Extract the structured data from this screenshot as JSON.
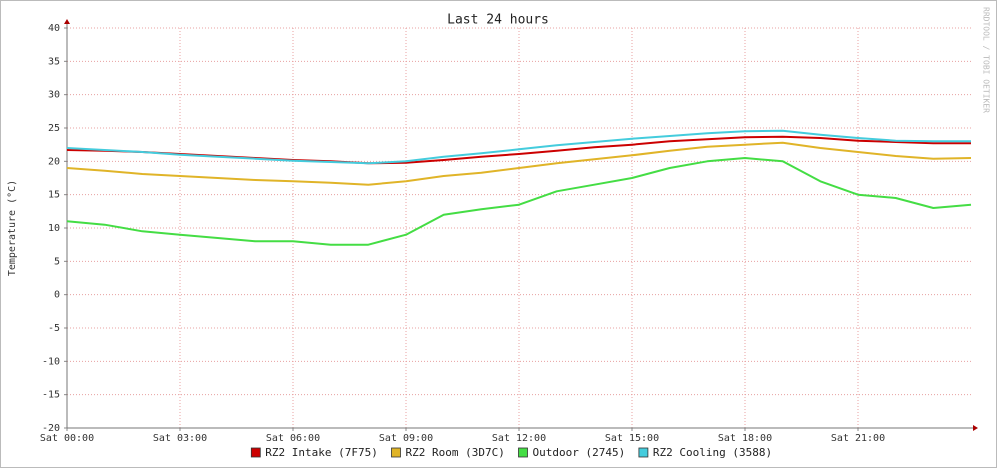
{
  "chart_data": {
    "type": "line",
    "title": "Last 24 hours",
    "y_label": "Temperature (°C)",
    "side_label": "RRDTOOL / TOBI OETIKER",
    "x": [
      0,
      1,
      2,
      3,
      4,
      5,
      6,
      7,
      8,
      9,
      10,
      11,
      12,
      13,
      14,
      15,
      16,
      17,
      18,
      19,
      20,
      21,
      22,
      23,
      24
    ],
    "xlim": [
      0,
      24
    ],
    "xticks": [
      {
        "value": 0,
        "label": "Sat 00:00"
      },
      {
        "value": 3,
        "label": "Sat 03:00"
      },
      {
        "value": 6,
        "label": "Sat 06:00"
      },
      {
        "value": 9,
        "label": "Sat 09:00"
      },
      {
        "value": 12,
        "label": "Sat 12:00"
      },
      {
        "value": 15,
        "label": "Sat 15:00"
      },
      {
        "value": 18,
        "label": "Sat 18:00"
      },
      {
        "value": 21,
        "label": "Sat 21:00"
      }
    ],
    "ylim": [
      -20,
      40
    ],
    "yticks": [
      -20,
      -15,
      -10,
      -5,
      0,
      5,
      10,
      15,
      20,
      25,
      30,
      35,
      40
    ],
    "grid": true,
    "legend": "bottom",
    "series": [
      {
        "name": "RZ2 Intake (7F75)",
        "color": "#cc0000",
        "values": [
          21.7,
          21.6,
          21.4,
          21.1,
          20.8,
          20.5,
          20.2,
          20.0,
          19.7,
          19.8,
          20.2,
          20.7,
          21.1,
          21.6,
          22.1,
          22.5,
          23.0,
          23.3,
          23.6,
          23.7,
          23.5,
          23.1,
          22.9,
          22.7,
          22.7
        ]
      },
      {
        "name": "RZ2 Room (3D7C)",
        "color": "#e0b428",
        "values": [
          19.0,
          18.6,
          18.1,
          17.8,
          17.5,
          17.2,
          17.0,
          16.8,
          16.5,
          17.0,
          17.8,
          18.3,
          19.0,
          19.7,
          20.3,
          20.9,
          21.6,
          22.2,
          22.5,
          22.8,
          22.0,
          21.4,
          20.8,
          20.4,
          20.5
        ]
      },
      {
        "name": "Outdoor (2745)",
        "color": "#44dd44",
        "values": [
          11.0,
          10.5,
          9.5,
          9.0,
          8.5,
          8.0,
          8.0,
          7.5,
          7.5,
          9.0,
          12.0,
          12.8,
          13.5,
          15.5,
          16.5,
          17.5,
          19.0,
          20.0,
          20.5,
          20.0,
          17.0,
          15.0,
          14.5,
          13.0,
          13.5
        ]
      },
      {
        "name": "RZ2 Cooling (3588)",
        "color": "#44ccdd",
        "values": [
          22.0,
          21.7,
          21.4,
          21.0,
          20.7,
          20.4,
          20.1,
          19.9,
          19.7,
          20.0,
          20.7,
          21.2,
          21.8,
          22.4,
          22.9,
          23.4,
          23.8,
          24.2,
          24.5,
          24.6,
          24.0,
          23.5,
          23.1,
          23.0,
          23.0
        ]
      }
    ]
  }
}
